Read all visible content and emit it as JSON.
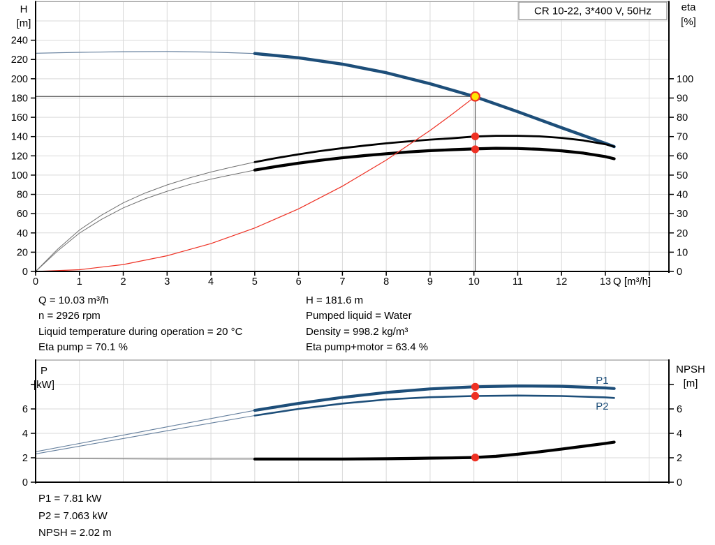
{
  "title_box": {
    "text": "CR 10-22, 3*400 V, 50Hz"
  },
  "duty_info": {
    "left": [
      "Q = 10.03 m³/h",
      "n = 2926 rpm",
      "Liquid temperature during operation = 20 °C",
      "Eta pump = 70.1 %"
    ],
    "right": [
      "H = 181.6 m",
      "Pumped liquid = Water",
      "Density = 998.2 kg/m³",
      "Eta pump+motor = 63.4 %"
    ]
  },
  "result_info": [
    "P1 = 7.81 kW",
    "P2 = 7.063 kW",
    "NPSH = 2.02 m"
  ],
  "colors": {
    "blue": "#1d4e79",
    "blue_thin": "#66809e",
    "black": "#000000",
    "black_thin": "#707070",
    "red": "#ee3124",
    "grid": "#d9d9d9",
    "border": "#9b9b9b",
    "axis": "#000000",
    "crosshair": "#555555",
    "duty_fill": "#ffe600",
    "title_border": "#888888",
    "text": "#000000"
  },
  "chart_data": [
    {
      "id": "qh-chart",
      "type": "line",
      "title": "CR 10-22, 3*400 V, 50Hz",
      "xlabel": "Q [m³/h]",
      "x_ticks": [
        0,
        1,
        2,
        3,
        4,
        5,
        6,
        7,
        8,
        9,
        10,
        11,
        12,
        13
      ],
      "x_grid": [
        1,
        2,
        3,
        4,
        5,
        6,
        7,
        8,
        9,
        10,
        11,
        12,
        13,
        14
      ],
      "xlim": [
        0,
        14.45
      ],
      "left_axis": {
        "name": "H",
        "unit": "[m]",
        "ticks": [
          0,
          20,
          40,
          60,
          80,
          100,
          120,
          140,
          160,
          180,
          200,
          220,
          240
        ],
        "lim": [
          0,
          280
        ],
        "grid_step": 20
      },
      "right_axis": {
        "name": "eta",
        "unit": "[%]",
        "ticks": [
          0,
          10,
          20,
          30,
          40,
          50,
          60,
          70,
          80,
          90,
          100
        ],
        "lim": [
          0,
          140
        ]
      },
      "duty_point": {
        "q": 10.03,
        "h": 181.6
      },
      "series": [
        {
          "id": "qh",
          "name": "QH pump curve",
          "axis": "left",
          "color": "blue",
          "thin_w": 1.2,
          "thick_w": 4.4,
          "thick_from": 5,
          "q": [
            0,
            1,
            2,
            3,
            4,
            5,
            6,
            7,
            8,
            9,
            10,
            11,
            12,
            13,
            13.2
          ],
          "v": [
            226.5,
            227.4,
            228.1,
            228.3,
            227.7,
            226.2,
            221.8,
            215.2,
            206.3,
            194.8,
            181.7,
            165.8,
            149.2,
            133.0,
            129.6
          ]
        },
        {
          "id": "eta-pump",
          "name": "Eta pump",
          "axis": "right",
          "color": "black",
          "thin_w": 1.0,
          "thick_w": 2.8,
          "thick_from": 5,
          "q": [
            0,
            0.5,
            1,
            1.5,
            2,
            2.5,
            3,
            3.5,
            4,
            4.5,
            5,
            5.5,
            6,
            6.5,
            7,
            7.5,
            8,
            8.5,
            9,
            9.5,
            10,
            10.5,
            11,
            11.5,
            12,
            12.5,
            13,
            13.2
          ],
          "v": [
            0,
            11.5,
            21.5,
            29.2,
            35.6,
            40.7,
            44.9,
            48.5,
            51.6,
            54.3,
            56.8,
            58.9,
            60.8,
            62.5,
            64.0,
            65.3,
            66.5,
            67.5,
            68.4,
            69.1,
            70.0,
            70.4,
            70.4,
            70.1,
            69.3,
            68.0,
            66.0,
            64.8
          ]
        },
        {
          "id": "eta-pump-motor",
          "name": "Eta pump+motor",
          "axis": "right",
          "color": "black",
          "thin_w": 1.0,
          "thick_w": 4.2,
          "thick_from": 5,
          "q": [
            0,
            0.5,
            1,
            1.5,
            2,
            2.5,
            3,
            3.5,
            4,
            4.5,
            5,
            5.5,
            6,
            6.5,
            7,
            7.5,
            8,
            8.5,
            9,
            9.5,
            10,
            10.5,
            11,
            11.5,
            12,
            12.5,
            13,
            13.2
          ],
          "v": [
            0,
            10.6,
            19.9,
            27.0,
            33.0,
            37.7,
            41.6,
            45.0,
            47.9,
            50.3,
            52.6,
            54.5,
            56.2,
            57.7,
            59.0,
            60.1,
            61.1,
            62.0,
            62.7,
            63.2,
            63.6,
            63.9,
            63.8,
            63.4,
            62.6,
            61.4,
            59.6,
            58.5
          ]
        },
        {
          "id": "system-curve",
          "name": "System curve",
          "axis": "left",
          "color": "red",
          "thin_w": 1.2,
          "q": [
            0,
            1,
            2,
            3,
            4,
            5,
            6,
            7,
            8,
            9,
            9.5,
            10.03
          ],
          "v": [
            0,
            1.8,
            7.2,
            16.3,
            28.9,
            45.1,
            65.0,
            88.5,
            115.6,
            146.3,
            163.0,
            181.6
          ]
        }
      ],
      "markers": [
        {
          "q": 10.03,
          "v": 181.6,
          "axis": "left",
          "style": "duty",
          "name": "duty-point"
        },
        {
          "q": 10.03,
          "v": 70.1,
          "axis": "right",
          "style": "dot",
          "name": "eta-pump-point"
        },
        {
          "q": 10.03,
          "v": 63.4,
          "axis": "right",
          "style": "dot",
          "name": "eta-motor-point"
        }
      ]
    },
    {
      "id": "power-chart",
      "type": "line",
      "x_grid": [
        1,
        2,
        3,
        4,
        5,
        6,
        7,
        8,
        9,
        10,
        11,
        12,
        13,
        14
      ],
      "xlim": [
        0,
        14.45
      ],
      "left_axis": {
        "name": "P",
        "unit": "[kW]",
        "ticks": [
          0,
          2,
          4,
          6
        ],
        "extra_ticks": [
          8
        ],
        "lim": [
          0,
          10
        ],
        "grid_step": 2
      },
      "right_axis": {
        "name": "NPSH",
        "unit": "[m]",
        "ticks": [
          0,
          2,
          4,
          6
        ],
        "extra_ticks": [
          8
        ],
        "lim": [
          0,
          10
        ]
      },
      "series": [
        {
          "id": "p1",
          "name": "P1",
          "axis": "left",
          "color": "blue",
          "thin_w": 1.1,
          "thick_w": 4.2,
          "thick_from": 5,
          "label": {
            "text": "P1",
            "q": 12.78,
            "v": 8.05
          },
          "q": [
            0,
            1,
            2,
            3,
            4,
            5,
            6,
            7,
            8,
            9,
            10,
            11,
            12,
            13,
            13.2
          ],
          "v": [
            2.5,
            3.17,
            3.85,
            4.53,
            5.21,
            5.88,
            6.45,
            6.95,
            7.35,
            7.64,
            7.81,
            7.88,
            7.85,
            7.72,
            7.67
          ]
        },
        {
          "id": "p2",
          "name": "P2",
          "axis": "left",
          "color": "blue",
          "thin_w": 1.1,
          "thick_w": 2.6,
          "thick_from": 5,
          "label": {
            "text": "P2",
            "q": 12.78,
            "v": 5.95
          },
          "q": [
            0,
            1,
            2,
            3,
            4,
            5,
            6,
            7,
            8,
            9,
            10,
            11,
            12,
            13,
            13.2
          ],
          "v": [
            2.32,
            2.95,
            3.58,
            4.21,
            4.84,
            5.46,
            6.0,
            6.44,
            6.77,
            6.96,
            7.06,
            7.1,
            7.06,
            6.95,
            6.9
          ]
        },
        {
          "id": "npsh",
          "name": "NPSH",
          "axis": "right",
          "color": "black",
          "thin_w": 1.1,
          "thick_w": 4.2,
          "thick_from": 5,
          "q": [
            0,
            1,
            2,
            3,
            4,
            5,
            6,
            7,
            8,
            8.5,
            9,
            9.5,
            10,
            10.5,
            11,
            11.5,
            12,
            12.5,
            13,
            13.2
          ],
          "v": [
            1.93,
            1.92,
            1.91,
            1.9,
            1.9,
            1.9,
            1.9,
            1.9,
            1.92,
            1.94,
            1.97,
            1.99,
            2.02,
            2.12,
            2.29,
            2.49,
            2.71,
            2.94,
            3.18,
            3.28
          ]
        }
      ],
      "markers": [
        {
          "q": 10.03,
          "v": 7.81,
          "axis": "left",
          "style": "dot",
          "name": "p1-point"
        },
        {
          "q": 10.03,
          "v": 7.063,
          "axis": "left",
          "style": "dot",
          "name": "p2-point"
        },
        {
          "q": 10.03,
          "v": 2.02,
          "axis": "right",
          "style": "dot",
          "name": "npsh-point"
        }
      ]
    }
  ]
}
